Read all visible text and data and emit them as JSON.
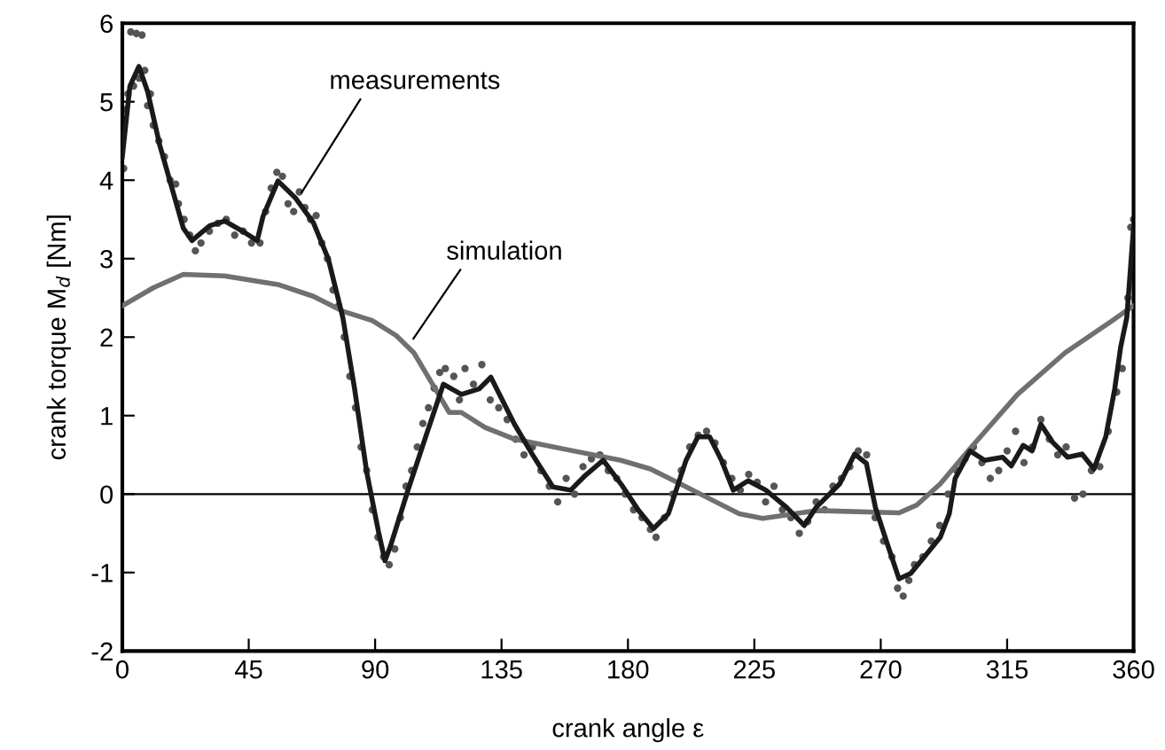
{
  "chart_data": {
    "type": "line",
    "xlabel": "crank angle ε",
    "ylabel": "crank torque M$_{d}$ [Nm]",
    "xlim": [
      0,
      360
    ],
    "ylim": [
      -2,
      6
    ],
    "xticks": [
      0,
      45,
      90,
      135,
      180,
      225,
      270,
      315,
      360
    ],
    "yticks": [
      -2,
      -1,
      0,
      1,
      2,
      3,
      4,
      5,
      6
    ],
    "ref_lines": [
      {
        "axis": "y",
        "value": 0,
        "color": "#000000",
        "line_style": "solid"
      }
    ],
    "annotations": [
      {
        "text": "measurements",
        "x": 63.8,
        "y": 3.84
      },
      {
        "text": "simulation",
        "x": 103.6,
        "y": 1.98
      }
    ],
    "series": [
      {
        "type": "scatter",
        "color": "#555555",
        "marker": "circle",
        "x": [
          0.5,
          1,
          2,
          3,
          5,
          7,
          4,
          6,
          8,
          9,
          10,
          11,
          13,
          15,
          17,
          19,
          20,
          22,
          24,
          26,
          28,
          31,
          34,
          37,
          40,
          43,
          46,
          49,
          51,
          53,
          55,
          57,
          59,
          61,
          63,
          65,
          67,
          69,
          71,
          73,
          75,
          77,
          79,
          81,
          83,
          85,
          87,
          89,
          91,
          93,
          95,
          97,
          99,
          101,
          103,
          105,
          107,
          109,
          111,
          113,
          115,
          118,
          120,
          122,
          125,
          128,
          131,
          134,
          137,
          140,
          143,
          146,
          149,
          152,
          155,
          158,
          161,
          164,
          167,
          170,
          173,
          176,
          179,
          182,
          185,
          188,
          190,
          193,
          196,
          199,
          202,
          205,
          208,
          211,
          214,
          217,
          220,
          223,
          226,
          229,
          232,
          235,
          238,
          241,
          244,
          247,
          250,
          253,
          256,
          259,
          262,
          265,
          268,
          271,
          274,
          276,
          278,
          280,
          282,
          285,
          288,
          291,
          294,
          297,
          300,
          303,
          306,
          309,
          312,
          315,
          318,
          321,
          324,
          327,
          330,
          333,
          336,
          339,
          342,
          345,
          348,
          351,
          354,
          356,
          358,
          359,
          360
        ],
        "values": [
          4.15,
          4.9,
          5.1,
          5.89,
          5.87,
          5.85,
          5.2,
          5.3,
          5.4,
          4.95,
          5.1,
          4.7,
          4.5,
          4.3,
          4.0,
          3.95,
          3.7,
          3.5,
          3.3,
          3.1,
          3.2,
          3.35,
          3.45,
          3.5,
          3.3,
          3.35,
          3.2,
          3.2,
          3.6,
          3.9,
          4.1,
          4.05,
          3.7,
          3.6,
          3.85,
          3.65,
          3.5,
          3.55,
          3.2,
          3.0,
          2.6,
          2.4,
          2.0,
          1.5,
          1.1,
          0.6,
          0.3,
          -0.2,
          -0.55,
          -0.8,
          -0.9,
          -0.7,
          -0.3,
          0.1,
          0.3,
          0.6,
          0.9,
          1.1,
          1.35,
          1.55,
          1.6,
          1.5,
          1.2,
          1.6,
          1.4,
          1.65,
          1.2,
          1.1,
          0.95,
          0.7,
          0.5,
          0.6,
          0.3,
          0.1,
          -0.1,
          0.2,
          0.0,
          0.35,
          0.45,
          0.5,
          0.3,
          0.2,
          0.0,
          -0.2,
          -0.3,
          -0.45,
          -0.55,
          -0.3,
          0.0,
          0.3,
          0.6,
          0.75,
          0.8,
          0.65,
          0.4,
          0.2,
          0.05,
          0.25,
          0.15,
          -0.1,
          0.1,
          -0.2,
          -0.3,
          -0.5,
          -0.35,
          -0.1,
          -0.2,
          0.1,
          0.2,
          0.35,
          0.55,
          0.5,
          -0.3,
          -0.6,
          -0.8,
          -1.2,
          -1.3,
          -1.1,
          -0.9,
          -0.8,
          -0.6,
          -0.4,
          0.0,
          0.3,
          0.45,
          0.6,
          0.4,
          0.2,
          0.3,
          0.55,
          0.8,
          0.4,
          0.6,
          0.95,
          0.7,
          0.5,
          0.6,
          -0.05,
          0.0,
          0.3,
          0.35,
          0.8,
          1.3,
          1.6,
          2.5,
          3.4,
          3.5
        ]
      },
      {
        "color": "#707070",
        "marker": "none",
        "line_style": "solid",
        "x": [
          0,
          11.1,
          21.7,
          36.4,
          55.4,
          68,
          78.5,
          89,
          97.5,
          103.8,
          110.1,
          116.4,
          120.7,
          129.1,
          139.6,
          160.6,
          177.5,
          188,
          198.6,
          209.1,
          219.6,
          228,
          247,
          276.5,
          282.8,
          291.2,
          301.8,
          318.7,
          335.6,
          352.4,
          360
        ],
        "values": [
          2.4,
          2.63,
          2.8,
          2.78,
          2.67,
          2.52,
          2.33,
          2.21,
          2.02,
          1.8,
          1.42,
          1.04,
          1.04,
          0.85,
          0.7,
          0.55,
          0.43,
          0.32,
          0.13,
          -0.06,
          -0.25,
          -0.31,
          -0.21,
          -0.24,
          -0.14,
          0.13,
          0.58,
          1.27,
          1.8,
          2.21,
          2.4
        ]
      },
      {
        "color": "#1a1a1a",
        "marker": "none",
        "line_style": "solid",
        "x": [
          0,
          2.7,
          5.9,
          9,
          13.3,
          17.5,
          21.7,
          24.8,
          31.1,
          36.4,
          42.8,
          48,
          50.1,
          55.4,
          61.7,
          68,
          73.3,
          78.5,
          82.7,
          87,
          91.2,
          93.5,
          95.4,
          101.7,
          108,
          114.3,
          120.7,
          127,
          131.2,
          139.6,
          145.9,
          153.3,
          159.6,
          164.9,
          171.2,
          177.5,
          183.8,
          189.1,
          194.4,
          200.7,
          204.9,
          209.1,
          213.3,
          217.5,
          222.8,
          229.1,
          236.5,
          242.8,
          247,
          255.4,
          260.7,
          264.9,
          268.1,
          272.3,
          276.5,
          280.7,
          286,
          291.2,
          294.4,
          296.5,
          301.8,
          307,
          313.4,
          316.5,
          320.7,
          323.9,
          327,
          331.2,
          336.5,
          341.7,
          345.9,
          350.1,
          353.3,
          355.4,
          357.6,
          360
        ],
        "values": [
          4.3,
          5.2,
          5.45,
          5.13,
          4.45,
          3.92,
          3.39,
          3.23,
          3.42,
          3.48,
          3.35,
          3.23,
          3.54,
          3.99,
          3.77,
          3.46,
          3.0,
          2.25,
          1.34,
          0.28,
          -0.48,
          -0.85,
          -0.67,
          0.05,
          0.73,
          1.4,
          1.27,
          1.34,
          1.49,
          0.89,
          0.51,
          0.09,
          0.05,
          0.24,
          0.43,
          0.13,
          -0.21,
          -0.44,
          -0.25,
          0.43,
          0.73,
          0.73,
          0.43,
          0.05,
          0.17,
          0.05,
          -0.17,
          -0.4,
          -0.17,
          0.13,
          0.51,
          0.39,
          -0.17,
          -0.63,
          -1.08,
          -1.01,
          -0.78,
          -0.55,
          -0.25,
          0.2,
          0.55,
          0.43,
          0.47,
          0.36,
          0.62,
          0.55,
          0.89,
          0.66,
          0.47,
          0.51,
          0.32,
          0.73,
          1.34,
          1.87,
          2.25,
          3.4
        ]
      }
    ]
  }
}
